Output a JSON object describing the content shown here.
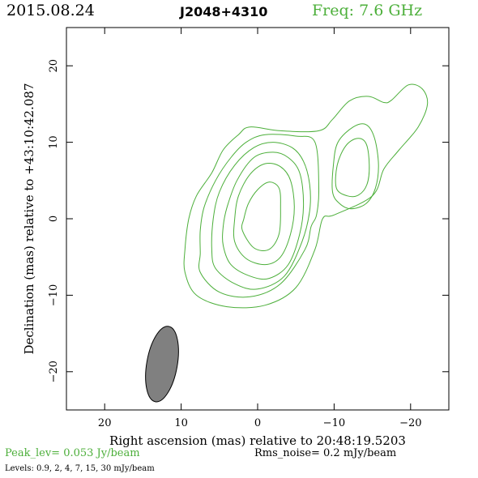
{
  "header": {
    "date": "2015.08.24",
    "source": "J2048+4310",
    "freq": "Freq: 7.6 GHz"
  },
  "footer": {
    "peak": "Peak_lev=  0.053 Jy/beam",
    "rms": "Rms_noise=  0.2 mJy/beam",
    "levels": "Levels: 0.9,   2,   4,   7,  15,  30 mJy/beam"
  },
  "colors": {
    "contour": "#4caf3a",
    "beam": "#808080",
    "axes": "#000000"
  },
  "chart_data": {
    "type": "contour",
    "xlabel": "Right ascension (mas) relative to 20:48:19.5203",
    "ylabel": "Declination (mas) relative to +43:10:42.087",
    "xlim": [
      25,
      -25
    ],
    "ylim": [
      -25,
      25
    ],
    "xticks": [
      20,
      10,
      0,
      -10,
      -20
    ],
    "yticks": [
      20,
      10,
      0,
      -10,
      -20
    ],
    "contour_levels_mJy": [
      0.9,
      2,
      4,
      7,
      15,
      30
    ],
    "peak_Jy_per_beam": 0.053,
    "rms_mJy_per_beam": 0.2,
    "contours": [
      [
        [
          9.5,
          -4
        ],
        [
          9.5,
          -7
        ],
        [
          8,
          -10
        ],
        [
          4,
          -11.5
        ],
        [
          -1,
          -11.3
        ],
        [
          -5,
          -9
        ],
        [
          -7.5,
          -4
        ],
        [
          -8.5,
          0
        ],
        [
          -10,
          0.5
        ],
        [
          -15,
          3
        ],
        [
          -16.5,
          6.5
        ],
        [
          -18.5,
          9
        ],
        [
          -21,
          12
        ],
        [
          -22.2,
          15
        ],
        [
          -21.5,
          17
        ],
        [
          -19.7,
          17.5
        ],
        [
          -17.5,
          15.5
        ],
        [
          -16.5,
          15.2
        ],
        [
          -14.5,
          16
        ],
        [
          -12,
          15.4
        ],
        [
          -9.8,
          13
        ],
        [
          -8,
          11.5
        ],
        [
          -3,
          11.5
        ],
        [
          1,
          12
        ],
        [
          2.5,
          11
        ],
        [
          4.5,
          9
        ],
        [
          6,
          6
        ],
        [
          8,
          3
        ],
        [
          9,
          0
        ]
      ],
      [
        [
          7.5,
          -4.5
        ],
        [
          7.5,
          -7
        ],
        [
          5,
          -9.6
        ],
        [
          1,
          -10.2
        ],
        [
          -3,
          -8.5
        ],
        [
          -6.2,
          -4
        ],
        [
          -7,
          -1
        ],
        [
          -7.7,
          0.5
        ],
        [
          -8,
          4
        ],
        [
          -7.5,
          10
        ],
        [
          -5,
          10.8
        ],
        [
          -1,
          11
        ],
        [
          1.5,
          10
        ],
        [
          3.5,
          8
        ],
        [
          5.5,
          5
        ],
        [
          7,
          1.5
        ],
        [
          7.5,
          -1.5
        ]
      ],
      [
        [
          6,
          -4
        ],
        [
          5.5,
          -6.5
        ],
        [
          3,
          -8.5
        ],
        [
          0,
          -9.2
        ],
        [
          -3.5,
          -7.5
        ],
        [
          -5.8,
          -3
        ],
        [
          -6.8,
          1
        ],
        [
          -6.8,
          4.5
        ],
        [
          -6,
          7.5
        ],
        [
          -4.5,
          9.3
        ],
        [
          -2,
          10
        ],
        [
          0.5,
          9.3
        ],
        [
          3,
          7
        ],
        [
          5,
          3.5
        ],
        [
          5.8,
          0
        ]
      ],
      [
        [
          4.5,
          -3.5
        ],
        [
          3.5,
          -6
        ],
        [
          1,
          -7.5
        ],
        [
          -1.5,
          -7.8
        ],
        [
          -4,
          -6
        ],
        [
          -5.5,
          -2
        ],
        [
          -6,
          2
        ],
        [
          -5.5,
          6
        ],
        [
          -4,
          8
        ],
        [
          -2,
          8.7
        ],
        [
          0.5,
          8
        ],
        [
          2.7,
          5
        ],
        [
          4,
          1.5
        ],
        [
          4.5,
          -1
        ]
      ],
      [
        [
          3,
          -3
        ],
        [
          1.5,
          -5.2
        ],
        [
          -1,
          -6
        ],
        [
          -3,
          -5
        ],
        [
          -4.3,
          -2
        ],
        [
          -4.8,
          1.5
        ],
        [
          -4.3,
          5
        ],
        [
          -3,
          6.8
        ],
        [
          -1,
          7.2
        ],
        [
          1,
          5.8
        ],
        [
          2.5,
          3
        ],
        [
          3,
          0
        ]
      ],
      [
        [
          2,
          -1.5
        ],
        [
          0.5,
          -3.8
        ],
        [
          -1.5,
          -4
        ],
        [
          -2.8,
          -2
        ],
        [
          -3,
          1.5
        ],
        [
          -2.8,
          4
        ],
        [
          -1.5,
          4.8
        ],
        [
          0,
          3.8
        ],
        [
          1.2,
          2
        ],
        [
          1.8,
          0
        ]
      ],
      [
        [
          -9.8,
          3.5
        ],
        [
          -9.9,
          7
        ],
        [
          -10.5,
          10
        ],
        [
          -12.5,
          12
        ],
        [
          -14.2,
          12.3
        ],
        [
          -15.3,
          10.5
        ],
        [
          -15.8,
          7
        ],
        [
          -15.4,
          4
        ],
        [
          -14.2,
          2
        ],
        [
          -12.2,
          1.3
        ],
        [
          -10.7,
          2
        ]
      ],
      [
        [
          -10.3,
          4
        ],
        [
          -10.4,
          7
        ],
        [
          -11.5,
          9.5
        ],
        [
          -13,
          10.5
        ],
        [
          -14.2,
          9.8
        ],
        [
          -14.6,
          7
        ],
        [
          -14.3,
          4.5
        ],
        [
          -13.2,
          3.1
        ],
        [
          -11.7,
          3
        ]
      ]
    ],
    "beam": {
      "center": [
        12.5,
        -19
      ],
      "major_mas": 10,
      "minor_mas": 4,
      "pa_deg": 10
    }
  }
}
